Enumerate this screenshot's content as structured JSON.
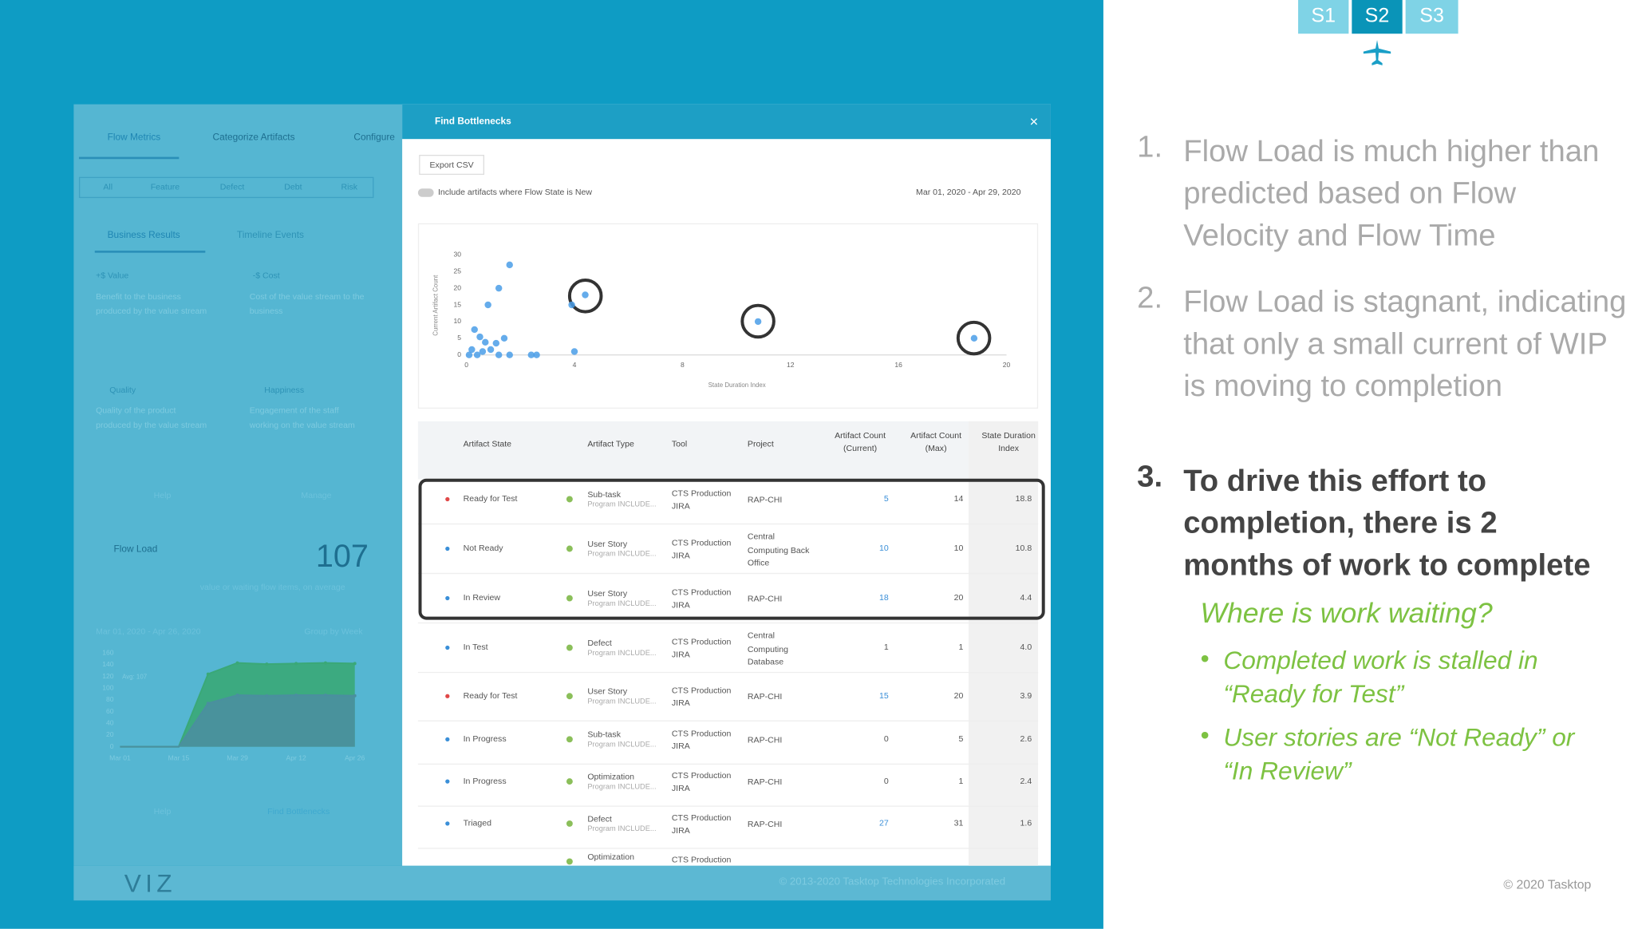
{
  "slide_tabs": [
    "S1",
    "S2",
    "S3"
  ],
  "notes": {
    "items": [
      {
        "number": "1.",
        "text": "Flow Load is much higher than predicted based on Flow Velocity and Flow Time"
      },
      {
        "number": "2.",
        "text": "Flow Load is stagnant, indicating that only a small current of WIP is moving to completion"
      },
      {
        "number": "3.",
        "text": "To drive this effort to completion, there is 2 months of work to complete"
      }
    ],
    "question": "Where is work waiting?",
    "bullets": [
      "Completed work is stalled in “Ready for Test”",
      "User stories are “Not Ready” or “In Review”"
    ],
    "footer": "© 2020 Tasktop"
  },
  "app": {
    "nav_tabs": [
      "Flow Metrics",
      "Categorize Artifacts",
      "Configure"
    ],
    "filters": [
      "All",
      "Feature",
      "Defect",
      "Debt",
      "Risk"
    ],
    "sub_tabs": [
      "Business Results",
      "Timeline Events"
    ],
    "cards": [
      {
        "title": "+$ Value",
        "desc": "Benefit to the business produced by the value stream"
      },
      {
        "title": "-$ Cost",
        "desc": "Cost of the value stream to the business"
      },
      {
        "title": "Quality",
        "desc": "Quality of the product produced by the value stream"
      },
      {
        "title": "Happiness",
        "desc": "Engagement of the staff working on the value stream"
      }
    ],
    "help": "Help",
    "manage": "Manage",
    "flow_load": {
      "title": "Flow Load",
      "value": "107",
      "caption": "value or waiting flow items, on average",
      "date_range": "Mar 01, 2020 - Apr 26, 2020",
      "group": "Group by Week",
      "help": "Help",
      "find": "Find Bottlenecks"
    },
    "logo": "VIZ",
    "copyright": "© 2013-2020 Tasktop Technologies Incorporated"
  },
  "modal": {
    "title": "Find Bottlenecks",
    "close": "×",
    "export": "Export CSV",
    "toggle": "Include artifacts where Flow State is New",
    "date_range": "Mar 01, 2020 - Apr 29, 2020",
    "columns": [
      "Artifact State",
      "Artifact Type",
      "Tool",
      "Project",
      "Artifact Count (Current)",
      "Artifact Count (Max)",
      "State Duration Index"
    ],
    "rows": [
      {
        "state": "Ready for Test",
        "type": "Sub-task",
        "program": "Program INCLUDE...",
        "tool": "CTS Production JIRA",
        "project": "RAP-CHI",
        "count": "5",
        "max": "14",
        "sdi": "18.8"
      },
      {
        "state": "Not Ready",
        "type": "User Story",
        "program": "Program INCLUDE...",
        "tool": "CTS Production JIRA",
        "project": "Central Computing Back Office",
        "count": "10",
        "max": "10",
        "sdi": "10.8"
      },
      {
        "state": "In Review",
        "type": "User Story",
        "program": "Program INCLUDE...",
        "tool": "CTS Production JIRA",
        "project": "RAP-CHI",
        "count": "18",
        "max": "20",
        "sdi": "4.4"
      },
      {
        "state": "In Test",
        "type": "Defect",
        "program": "Program INCLUDE...",
        "tool": "CTS Production JIRA",
        "project": "Central Computing Database",
        "count": "1",
        "max": "1",
        "sdi": "4.0"
      },
      {
        "state": "Ready for Test",
        "type": "User Story",
        "program": "Program INCLUDE...",
        "tool": "CTS Production JIRA",
        "project": "RAP-CHI",
        "count": "15",
        "max": "20",
        "sdi": "3.9"
      },
      {
        "state": "In Progress",
        "type": "Sub-task",
        "program": "Program INCLUDE...",
        "tool": "CTS Production JIRA",
        "project": "RAP-CHI",
        "count": "0",
        "max": "5",
        "sdi": "2.6"
      },
      {
        "state": "In Progress",
        "type": "Optimization",
        "program": "Program INCLUDE...",
        "tool": "CTS Production JIRA",
        "project": "RAP-CHI",
        "count": "0",
        "max": "1",
        "sdi": "2.4"
      },
      {
        "state": "Triaged",
        "type": "Defect",
        "program": "Program INCLUDE...",
        "tool": "CTS Production JIRA",
        "project": "RAP-CHI",
        "count": "27",
        "max": "31",
        "sdi": "1.6"
      },
      {
        "type": "Optimization",
        "tool": "CTS Production"
      }
    ],
    "row_dots": [
      "#e04848",
      "#3a8fd8",
      "#3a8fd8",
      "#3a8fd8",
      "#e04848",
      "#3a8fd8",
      "#3a8fd8",
      "#3a8fd8",
      "#3a8fd8"
    ]
  },
  "chart_data": [
    {
      "type": "scatter",
      "xlabel": "State Duration Index",
      "ylabel": "Current Artifact Count",
      "color": "#4a9de8",
      "x": [
        18.8,
        10.8,
        4.4,
        4.0,
        3.9,
        2.6,
        2.4,
        1.6,
        1.2,
        0.8,
        0.3,
        0.5,
        0.7,
        1.1,
        1.4,
        0.2,
        0.4,
        0.6,
        0.9,
        1.2,
        1.6,
        0.1
      ],
      "y": [
        5,
        10,
        18,
        1,
        15,
        0,
        0,
        27,
        20,
        15,
        7.6,
        5.4,
        3.8,
        3.5,
        5,
        1.6,
        0,
        1,
        1.6,
        0,
        0,
        0
      ],
      "xlim": [
        0,
        20
      ],
      "xticks": [
        0,
        4,
        8,
        12,
        16,
        20
      ],
      "ylim": [
        0,
        30
      ],
      "yticks": [
        0,
        5,
        10,
        15,
        20,
        25,
        30
      ]
    },
    {
      "type": "area",
      "categories": [
        "Mar 01",
        null,
        "Mar 15",
        null,
        "Mar 29",
        null,
        "Apr 12",
        null,
        "Apr 26"
      ],
      "series": [
        {
          "color": "#3aa877",
          "values": [
            0,
            0,
            0,
            124,
            143,
            141,
            142,
            143,
            142
          ]
        },
        {
          "color": "#4a8f9f",
          "values": [
            0,
            0,
            0,
            74,
            88,
            87,
            88,
            88,
            87
          ]
        }
      ],
      "annotation": "Avg: 107",
      "ylim": [
        0,
        160
      ],
      "yticks": [
        0,
        20,
        40,
        60,
        80,
        100,
        120,
        140,
        160
      ]
    }
  ]
}
